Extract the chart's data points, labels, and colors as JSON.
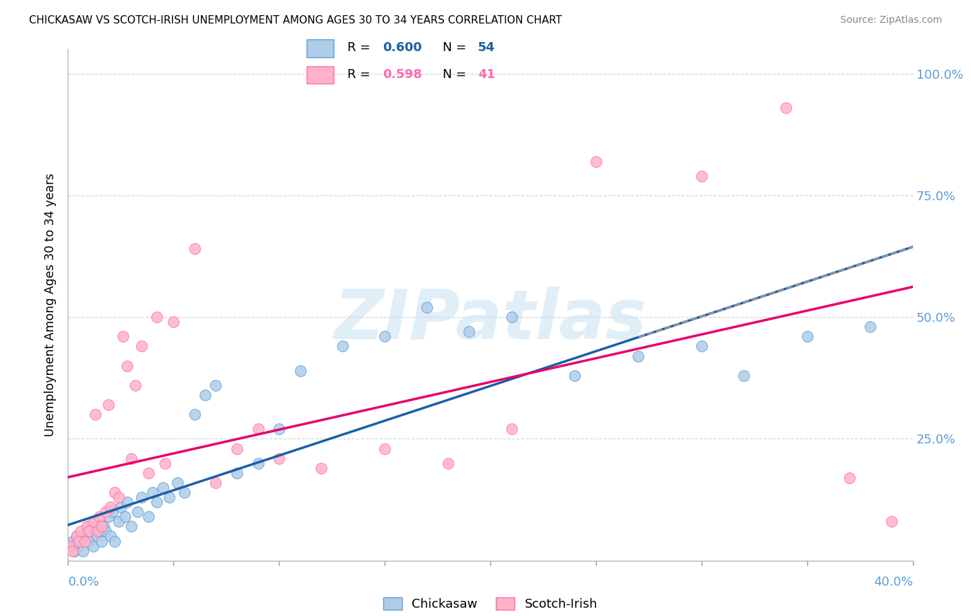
{
  "title": "CHICKASAW VS SCOTCH-IRISH UNEMPLOYMENT AMONG AGES 30 TO 34 YEARS CORRELATION CHART",
  "source": "Source: ZipAtlas.com",
  "ylabel": "Unemployment Among Ages 30 to 34 years",
  "x_range": [
    0.0,
    0.4
  ],
  "y_range": [
    0.0,
    1.05
  ],
  "y_ticks": [
    0.0,
    0.25,
    0.5,
    0.75,
    1.0
  ],
  "y_tick_labels": [
    "",
    "25.0%",
    "50.0%",
    "75.0%",
    "100.0%"
  ],
  "chickasaw_R": 0.6,
  "chickasaw_N": 54,
  "scotchirish_R": 0.598,
  "scotchirish_N": 41,
  "chickasaw_color": "#aecde8",
  "scotchirish_color": "#ffb3c6",
  "chickasaw_edge_color": "#5b9bd5",
  "scotchirish_edge_color": "#ff69b4",
  "chickasaw_line_color": "#1a5fa8",
  "scotchirish_line_color": "#e8006a",
  "grid_color": "#cccccc",
  "axis_label_color": "#5b9bd5",
  "watermark_text": "ZIPatlas",
  "chickasaw_x": [
    0.001,
    0.002,
    0.003,
    0.004,
    0.005,
    0.006,
    0.007,
    0.008,
    0.009,
    0.01,
    0.011,
    0.012,
    0.013,
    0.014,
    0.015,
    0.016,
    0.017,
    0.018,
    0.019,
    0.02,
    0.021,
    0.022,
    0.024,
    0.025,
    0.027,
    0.028,
    0.03,
    0.033,
    0.035,
    0.038,
    0.04,
    0.042,
    0.045,
    0.048,
    0.052,
    0.055,
    0.06,
    0.065,
    0.07,
    0.08,
    0.09,
    0.1,
    0.11,
    0.13,
    0.15,
    0.17,
    0.19,
    0.21,
    0.24,
    0.27,
    0.3,
    0.32,
    0.35,
    0.38
  ],
  "chickasaw_y": [
    0.03,
    0.04,
    0.02,
    0.05,
    0.03,
    0.04,
    0.02,
    0.05,
    0.06,
    0.04,
    0.07,
    0.03,
    0.08,
    0.05,
    0.06,
    0.04,
    0.07,
    0.06,
    0.09,
    0.05,
    0.1,
    0.04,
    0.08,
    0.11,
    0.09,
    0.12,
    0.07,
    0.1,
    0.13,
    0.09,
    0.14,
    0.12,
    0.15,
    0.13,
    0.16,
    0.14,
    0.3,
    0.34,
    0.36,
    0.18,
    0.2,
    0.27,
    0.39,
    0.44,
    0.46,
    0.52,
    0.47,
    0.5,
    0.38,
    0.42,
    0.44,
    0.38,
    0.46,
    0.48
  ],
  "scotchirish_x": [
    0.001,
    0.002,
    0.004,
    0.005,
    0.006,
    0.008,
    0.009,
    0.01,
    0.012,
    0.013,
    0.014,
    0.015,
    0.016,
    0.018,
    0.019,
    0.02,
    0.022,
    0.024,
    0.026,
    0.028,
    0.03,
    0.032,
    0.035,
    0.038,
    0.042,
    0.046,
    0.05,
    0.06,
    0.07,
    0.08,
    0.09,
    0.1,
    0.12,
    0.15,
    0.18,
    0.21,
    0.25,
    0.3,
    0.34,
    0.37,
    0.39
  ],
  "scotchirish_y": [
    0.03,
    0.02,
    0.05,
    0.04,
    0.06,
    0.04,
    0.07,
    0.06,
    0.08,
    0.3,
    0.06,
    0.09,
    0.07,
    0.1,
    0.32,
    0.11,
    0.14,
    0.13,
    0.46,
    0.4,
    0.21,
    0.36,
    0.44,
    0.18,
    0.5,
    0.2,
    0.49,
    0.64,
    0.16,
    0.23,
    0.27,
    0.21,
    0.19,
    0.23,
    0.2,
    0.27,
    0.82,
    0.79,
    0.93,
    0.17,
    0.08
  ]
}
